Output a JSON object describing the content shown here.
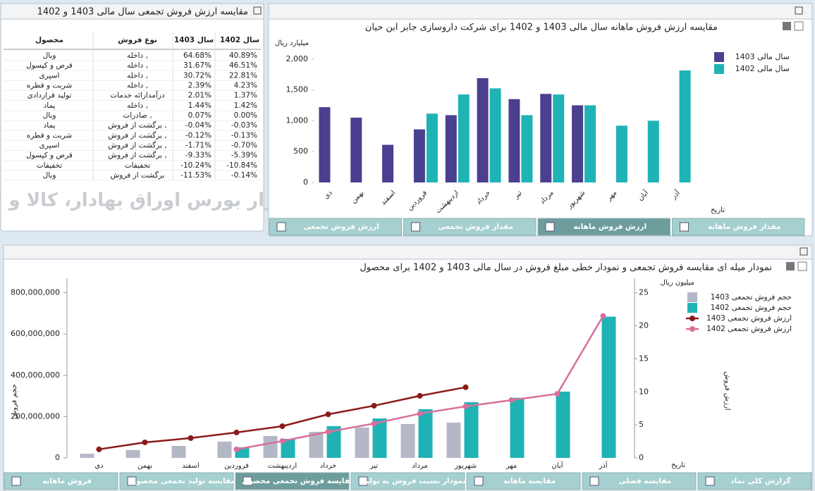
{
  "table": {
    "title": "مقایسه ارزش فروش تجمعی سال مالی 1403 و 1402",
    "header": [
      "محصول",
      "نوع فروش",
      "سال 1403",
      "سال 1402"
    ],
    "rows": [
      [
        "وبال",
        "داخله ,",
        "64.68%",
        "40.89%"
      ],
      [
        "قرص و کپسول",
        "داخله ,",
        "31.67%",
        "46.51%"
      ],
      [
        "اسپری",
        "داخله ,",
        "30.72%",
        "22.81%"
      ],
      [
        "شربت و قطره",
        "داخله ,",
        "2.39%",
        "4.23%"
      ],
      [
        "تولید قراردادی",
        "درآمدارائه خدمات",
        "2.01%",
        "1.37%"
      ],
      [
        "پماد",
        "داخله ,",
        "1.44%",
        "1.42%"
      ],
      [
        "وبال",
        "صادرات ,",
        "0.07%",
        "0.00%"
      ],
      [
        "پماد",
        "برگشت از فروش ,",
        "-0.04%",
        "-0.03%"
      ],
      [
        "شربت و قطره",
        "برگشت از فروش ,",
        "-0.12%",
        "-0.13%"
      ],
      [
        "اسپری",
        "برگشت از فروش ,",
        "-1.71%",
        "-0.70%"
      ],
      [
        "قرص و کپسول",
        "برگشت از فروش ,",
        "-9.33%",
        "-5.39%"
      ],
      [
        "تخفیفات",
        "تخفیفات",
        "-10.24%",
        "-10.84%"
      ],
      [
        "وبال",
        "برگشت از فروش",
        "-11.53%",
        "-0.14%"
      ]
    ]
  },
  "watermark": "کارگزار بورس اوراق بهادار، کالا و انرژی",
  "chart_data": [
    {
      "type": "bar",
      "title": "مقایسه ارزش فروش ماهانه سال مالی 1403 و 1402 برای شرکت داروسازی جابر ابن حیان",
      "y_label": "میلیارد ریال",
      "x_label": "تاریخ",
      "categories": [
        "دی",
        "بهمن",
        "اسفند",
        "فروردین",
        "اردیبهشت",
        "خرداد",
        "تیر",
        "مرداد",
        "شهریور",
        "مهر",
        "آبان",
        "آذر"
      ],
      "series": [
        {
          "name": "سال مالی 1403",
          "color": "#4b3f8f",
          "values": [
            1220,
            1050,
            610,
            860,
            1090,
            1690,
            1350,
            1435,
            1250,
            null,
            null,
            null
          ]
        },
        {
          "name": "سال مالی 1402",
          "color": "#1fb3b5",
          "values": [
            null,
            null,
            null,
            1115,
            1425,
            1525,
            1090,
            1425,
            1250,
            920,
            1000,
            1815
          ]
        }
      ],
      "ylim": [
        0,
        2100
      ],
      "yticks": [
        0,
        500,
        {
          "value": 1000,
          "label": "1,000"
        },
        {
          "value": 1500,
          "label": "1,500"
        },
        {
          "value": 2000,
          "label": "2,000"
        }
      ],
      "legend": "top-right"
    },
    {
      "type": "combo",
      "title": "نمودار میله ای مقایسه فروش تجمعی و نمودار خطی مبلغ فروش در سال مالی 1403 و 1402 برای محصول",
      "y_label": "حجم فروش",
      "y2_label": "ارزش فروش",
      "y2_unit": "میلیون ریال",
      "x_label": "تاریخ",
      "categories": [
        "دی",
        "بهمن",
        "اسفند",
        "فروردین",
        "اردیبهشت",
        "خرداد",
        "تیر",
        "مرداد",
        "شهریور",
        "مهر",
        "آبان",
        "آذر"
      ],
      "series": [
        {
          "name": "حجم فروش تجمعی 1403",
          "kind": "bar",
          "color": "#b3b7c6",
          "values": [
            20000000,
            38000000,
            58000000,
            79000000,
            106000000,
            126000000,
            147000000,
            164000000,
            171000000,
            null,
            null,
            null
          ]
        },
        {
          "name": "حجم فروش تجمعی 1402",
          "kind": "bar",
          "color": "#1fb3b5",
          "values": [
            null,
            null,
            null,
            51000000,
            92000000,
            154000000,
            191000000,
            236000000,
            270000000,
            291000000,
            321000000,
            684000000
          ]
        },
        {
          "name": "ارزش فروش تجمعی 1403",
          "kind": "line",
          "axis": "y2",
          "color": "#8b1a1a",
          "values": [
            1.3,
            2.35,
            3.0,
            3.85,
            4.8,
            6.6,
            7.9,
            9.4,
            10.7,
            null,
            null,
            null
          ]
        },
        {
          "name": "ارزش فروش تجمعی 1402",
          "kind": "line",
          "axis": "y2",
          "color": "#d8709c",
          "values": [
            null,
            null,
            null,
            1.3,
            2.55,
            3.95,
            5.2,
            6.7,
            7.8,
            8.75,
            9.7,
            21.5
          ]
        }
      ],
      "ylim": [
        0,
        870000000
      ],
      "yticks": [
        0,
        {
          "value": 200000000,
          "label": "200,000,000"
        },
        {
          "value": 400000000,
          "label": "400,000,000"
        },
        {
          "value": 600000000,
          "label": "600,000,000"
        },
        {
          "value": 800000000,
          "label": "800,000,000"
        }
      ],
      "y2lim": [
        0,
        27.2
      ],
      "y2ticks": [
        0,
        5,
        10,
        15,
        20,
        25
      ],
      "legend": "top-right"
    }
  ],
  "tabs_top": {
    "labels": [
      "ارزش فروش تجمعی",
      "مقدار فروش تجمعی",
      "ارزش فروش ماهانه",
      "مقدار فروش ماهانه"
    ],
    "active": 2
  },
  "tabs_bottom": {
    "labels": [
      "فروش ماهانه",
      "مقایسه تولید تجمعی محصول",
      "مقایسه فروش تجمعی محصول",
      "نمودار نسبت فروش به تولید",
      "مقایسه ماهانه",
      "مقایسه فصلی",
      "گزارش کلی نماد"
    ],
    "active": 2
  }
}
